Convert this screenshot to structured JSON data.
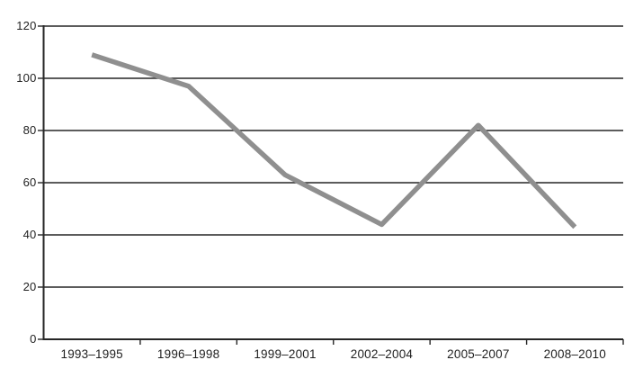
{
  "chart_data": {
    "type": "line",
    "title": "",
    "xlabel": "",
    "ylabel": "",
    "categories": [
      "1993–1995",
      "1996–1998",
      "1999–2001",
      "2002–2004",
      "2005–2007",
      "2008–2010"
    ],
    "series": [
      {
        "name": "value-by-period",
        "values": [
          109,
          97,
          63,
          44,
          82,
          43
        ]
      }
    ],
    "yticks": [
      0,
      20,
      40,
      60,
      80,
      100,
      120
    ],
    "ylim": [
      0,
      120
    ],
    "grid": "horizontal",
    "legend_position": "none",
    "colors": {
      "line": "#8f8f8f",
      "axis": "#262626",
      "grid": "#262626",
      "text": "#1f1f1f",
      "background": "#ffffff"
    }
  }
}
